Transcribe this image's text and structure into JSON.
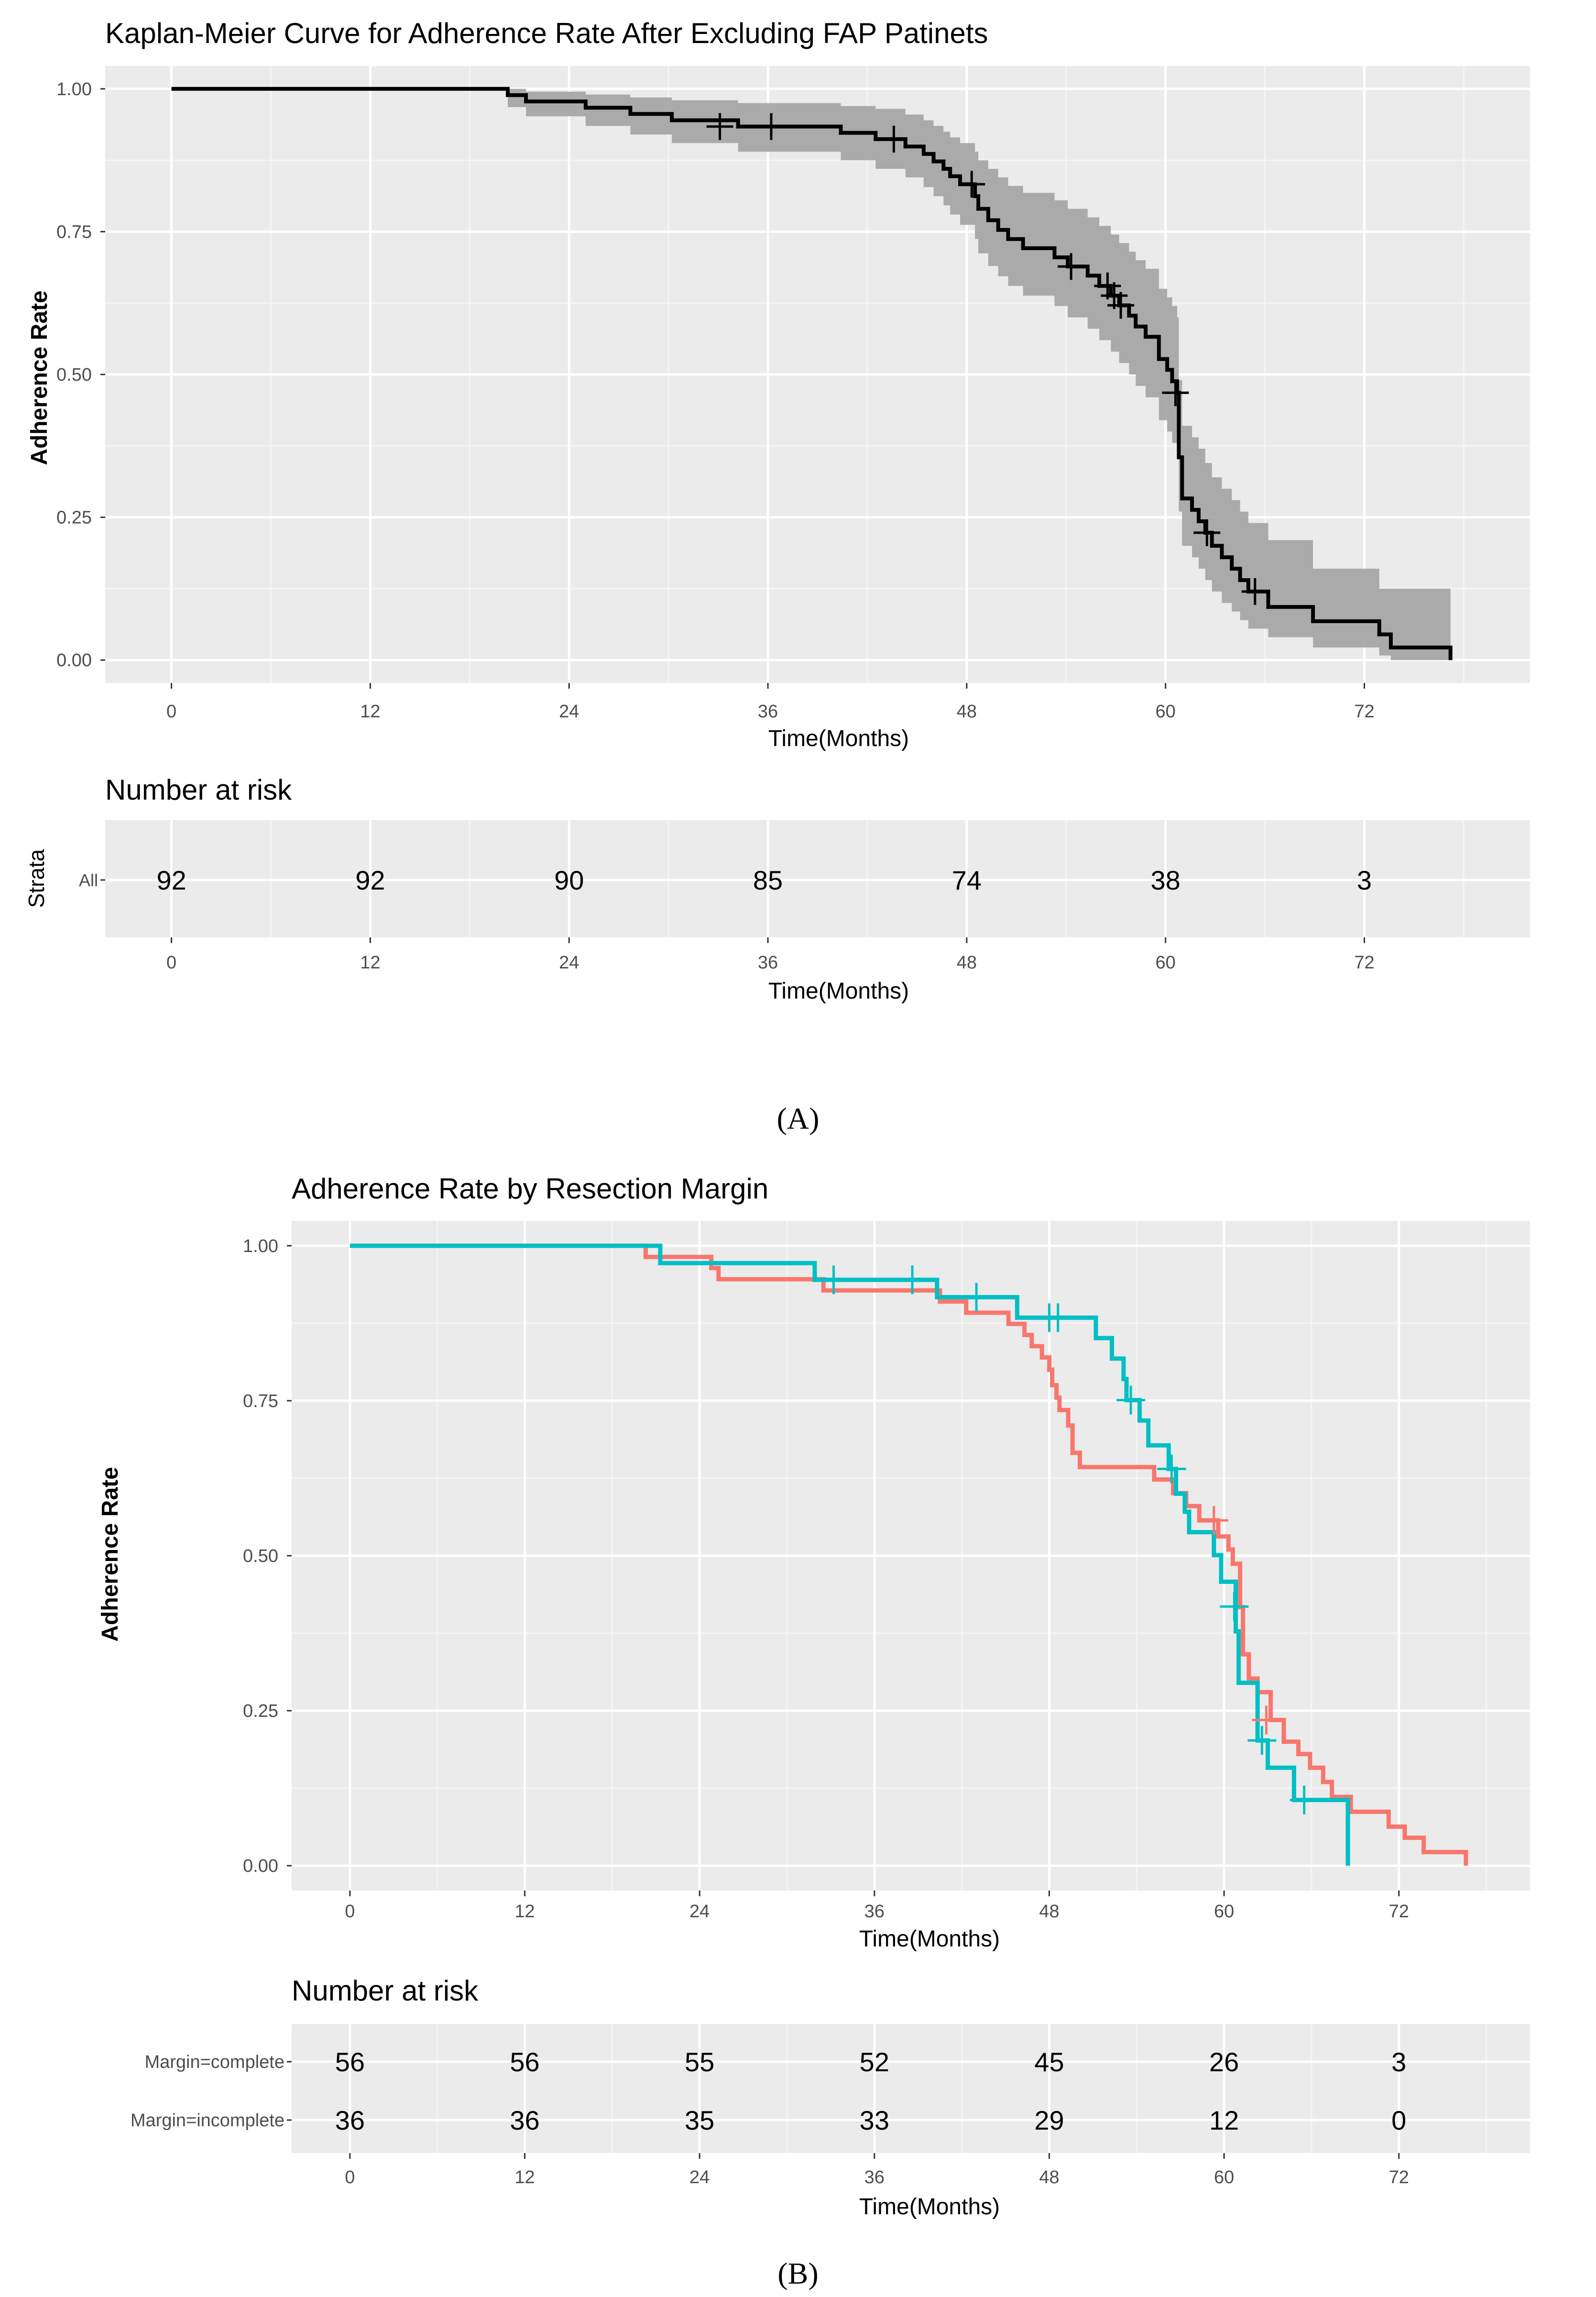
{
  "panel_labels": {
    "a": "(A)",
    "b": "(B)"
  },
  "risk_table_title": "Number at risk",
  "chart_data": [
    {
      "type": "line",
      "kind": "kaplan-meier",
      "title": "Kaplan-Meier Curve for Adherence Rate After Excluding FAP Patinets",
      "xlabel": "Time(Months)",
      "ylabel": "Adherence Rate",
      "xlim": [
        -4,
        82
      ],
      "ylim": [
        -0.04,
        1.04
      ],
      "xticks": [
        0,
        12,
        24,
        36,
        48,
        60,
        72
      ],
      "xtick_labels": [
        "0",
        "12",
        "24",
        "36",
        "48",
        "60",
        "72"
      ],
      "yticks": [
        0,
        0.25,
        0.5,
        0.75,
        1
      ],
      "ytick_labels": [
        "0.00",
        "0.25",
        "0.50",
        "0.75",
        "1.00"
      ],
      "grid": true,
      "legend": "none",
      "series": [
        {
          "name": "All",
          "color": "#000000",
          "band_color": "#a6a6a6",
          "steps": [
            [
              0,
              1.0
            ],
            [
              20.3,
              0.989
            ],
            [
              21.4,
              0.978
            ],
            [
              25.0,
              0.967
            ],
            [
              27.7,
              0.956
            ],
            [
              30.2,
              0.945
            ],
            [
              34.2,
              0.934
            ],
            [
              40.4,
              0.923
            ],
            [
              42.5,
              0.912
            ],
            [
              44.3,
              0.899
            ],
            [
              45.4,
              0.886
            ],
            [
              46.0,
              0.873
            ],
            [
              46.6,
              0.86
            ],
            [
              47.0,
              0.847
            ],
            [
              47.6,
              0.833
            ],
            [
              48.5,
              0.812
            ],
            [
              48.7,
              0.79
            ],
            [
              49.3,
              0.77
            ],
            [
              49.9,
              0.753
            ],
            [
              50.5,
              0.737
            ],
            [
              51.4,
              0.721
            ],
            [
              53.3,
              0.705
            ],
            [
              54.1,
              0.689
            ],
            [
              55.3,
              0.673
            ],
            [
              56.0,
              0.655
            ],
            [
              56.7,
              0.638
            ],
            [
              57.2,
              0.621
            ],
            [
              57.8,
              0.603
            ],
            [
              58.2,
              0.584
            ],
            [
              58.8,
              0.566
            ],
            [
              59.6,
              0.527
            ],
            [
              60.1,
              0.508
            ],
            [
              60.4,
              0.488
            ],
            [
              60.7,
              0.468
            ],
            [
              60.8,
              0.355
            ],
            [
              61.0,
              0.283
            ],
            [
              61.6,
              0.263
            ],
            [
              62.0,
              0.243
            ],
            [
              62.4,
              0.223
            ],
            [
              62.8,
              0.2
            ],
            [
              63.4,
              0.18
            ],
            [
              64.0,
              0.16
            ],
            [
              64.5,
              0.14
            ],
            [
              65.0,
              0.12
            ],
            [
              66.2,
              0.093
            ],
            [
              68.9,
              0.068
            ],
            [
              72.9,
              0.045
            ],
            [
              73.6,
              0.022
            ],
            [
              77.2,
              0.0
            ]
          ],
          "band_upper": [
            [
              0,
              1.0
            ],
            [
              20.3,
              1.0
            ],
            [
              21.4,
              0.995
            ],
            [
              25.0,
              0.99
            ],
            [
              27.7,
              0.985
            ],
            [
              30.2,
              0.98
            ],
            [
              34.2,
              0.975
            ],
            [
              40.4,
              0.97
            ],
            [
              42.5,
              0.965
            ],
            [
              44.3,
              0.955
            ],
            [
              45.4,
              0.945
            ],
            [
              46.0,
              0.935
            ],
            [
              46.6,
              0.925
            ],
            [
              47.0,
              0.915
            ],
            [
              47.6,
              0.905
            ],
            [
              48.5,
              0.89
            ],
            [
              48.7,
              0.875
            ],
            [
              49.3,
              0.86
            ],
            [
              49.9,
              0.845
            ],
            [
              50.5,
              0.83
            ],
            [
              51.4,
              0.818
            ],
            [
              53.3,
              0.805
            ],
            [
              54.1,
              0.79
            ],
            [
              55.3,
              0.775
            ],
            [
              56.0,
              0.76
            ],
            [
              56.7,
              0.745
            ],
            [
              57.2,
              0.73
            ],
            [
              57.8,
              0.715
            ],
            [
              58.2,
              0.7
            ],
            [
              58.8,
              0.685
            ],
            [
              59.6,
              0.65
            ],
            [
              60.1,
              0.635
            ],
            [
              60.4,
              0.62
            ],
            [
              60.7,
              0.6
            ],
            [
              60.8,
              0.49
            ],
            [
              61.0,
              0.41
            ],
            [
              61.6,
              0.39
            ],
            [
              62.0,
              0.37
            ],
            [
              62.4,
              0.345
            ],
            [
              62.8,
              0.32
            ],
            [
              63.4,
              0.3
            ],
            [
              64.0,
              0.28
            ],
            [
              64.5,
              0.26
            ],
            [
              65.0,
              0.24
            ],
            [
              66.2,
              0.21
            ],
            [
              68.9,
              0.16
            ],
            [
              72.9,
              0.125
            ],
            [
              77.2,
              0.125
            ]
          ],
          "band_lower": [
            [
              0,
              1.0
            ],
            [
              20.3,
              0.968
            ],
            [
              21.4,
              0.952
            ],
            [
              25.0,
              0.935
            ],
            [
              27.7,
              0.92
            ],
            [
              30.2,
              0.905
            ],
            [
              34.2,
              0.89
            ],
            [
              40.4,
              0.875
            ],
            [
              42.5,
              0.86
            ],
            [
              44.3,
              0.845
            ],
            [
              45.4,
              0.828
            ],
            [
              46.0,
              0.812
            ],
            [
              46.6,
              0.796
            ],
            [
              47.0,
              0.78
            ],
            [
              47.6,
              0.762
            ],
            [
              48.5,
              0.737
            ],
            [
              48.7,
              0.712
            ],
            [
              49.3,
              0.69
            ],
            [
              49.9,
              0.672
            ],
            [
              50.5,
              0.655
            ],
            [
              51.4,
              0.638
            ],
            [
              53.3,
              0.62
            ],
            [
              54.1,
              0.6
            ],
            [
              55.3,
              0.58
            ],
            [
              56.0,
              0.56
            ],
            [
              56.7,
              0.54
            ],
            [
              57.2,
              0.52
            ],
            [
              57.8,
              0.5
            ],
            [
              58.2,
              0.48
            ],
            [
              58.8,
              0.46
            ],
            [
              59.6,
              0.42
            ],
            [
              60.1,
              0.4
            ],
            [
              60.4,
              0.38
            ],
            [
              60.7,
              0.36
            ],
            [
              60.8,
              0.26
            ],
            [
              61.0,
              0.2
            ],
            [
              61.6,
              0.18
            ],
            [
              62.0,
              0.16
            ],
            [
              62.4,
              0.14
            ],
            [
              62.8,
              0.12
            ],
            [
              63.4,
              0.1
            ],
            [
              64.0,
              0.085
            ],
            [
              64.5,
              0.07
            ],
            [
              65.0,
              0.055
            ],
            [
              66.2,
              0.04
            ],
            [
              68.9,
              0.022
            ],
            [
              72.9,
              0.008
            ],
            [
              73.6,
              0.0
            ],
            [
              77.2,
              0.0
            ]
          ],
          "censor": [
            [
              33.1,
              0.934
            ],
            [
              36.2,
              0.934
            ],
            [
              43.6,
              0.912
            ],
            [
              48.3,
              0.833
            ],
            [
              54.3,
              0.689
            ],
            [
              56.5,
              0.655
            ],
            [
              56.9,
              0.638
            ],
            [
              57.3,
              0.621
            ],
            [
              60.6,
              0.468
            ],
            [
              62.5,
              0.223
            ],
            [
              65.4,
              0.12
            ]
          ]
        }
      ],
      "risk_table": {
        "strata_axis_label": "Strata",
        "rows": [
          {
            "label": "All",
            "color": "#000000",
            "values": [
              "92",
              "92",
              "90",
              "85",
              "74",
              "38",
              "3"
            ]
          }
        ]
      }
    },
    {
      "type": "line",
      "kind": "kaplan-meier",
      "title": "Adherence Rate by Resection Margin",
      "xlabel": "Time(Months)",
      "ylabel": "Adherence Rate",
      "xlim": [
        -4,
        81
      ],
      "ylim": [
        -0.04,
        1.04
      ],
      "xticks": [
        0,
        12,
        24,
        36,
        48,
        60,
        72
      ],
      "xtick_labels": [
        "0",
        "12",
        "24",
        "36",
        "48",
        "60",
        "72"
      ],
      "yticks": [
        0,
        0.25,
        0.5,
        0.75,
        1
      ],
      "ytick_labels": [
        "0.00",
        "0.25",
        "0.50",
        "0.75",
        "1.00"
      ],
      "grid": true,
      "legend": "none",
      "series": [
        {
          "name": "Margin=complete",
          "color": "#f8766d",
          "steps": [
            [
              0,
              1.0
            ],
            [
              20.3,
              0.982
            ],
            [
              24.8,
              0.964
            ],
            [
              25.3,
              0.946
            ],
            [
              32.5,
              0.928
            ],
            [
              40.5,
              0.91
            ],
            [
              42.3,
              0.892
            ],
            [
              45.2,
              0.874
            ],
            [
              46.3,
              0.856
            ],
            [
              46.8,
              0.838
            ],
            [
              47.5,
              0.82
            ],
            [
              48.0,
              0.8
            ],
            [
              48.2,
              0.775
            ],
            [
              48.5,
              0.755
            ],
            [
              48.7,
              0.735
            ],
            [
              49.3,
              0.71
            ],
            [
              49.6,
              0.666
            ],
            [
              50.1,
              0.643
            ],
            [
              55.2,
              0.623
            ],
            [
              56.5,
              0.601
            ],
            [
              57.4,
              0.58
            ],
            [
              58.3,
              0.557
            ],
            [
              59.6,
              0.531
            ],
            [
              60.3,
              0.51
            ],
            [
              60.6,
              0.487
            ],
            [
              61.1,
              0.417
            ],
            [
              61.3,
              0.341
            ],
            [
              61.7,
              0.302
            ],
            [
              62.3,
              0.28
            ],
            [
              63.2,
              0.235
            ],
            [
              64.1,
              0.2
            ],
            [
              65.1,
              0.18
            ],
            [
              65.9,
              0.158
            ],
            [
              66.8,
              0.135
            ],
            [
              67.4,
              0.111
            ],
            [
              68.7,
              0.087
            ],
            [
              71.3,
              0.063
            ],
            [
              72.4,
              0.045
            ],
            [
              73.7,
              0.022
            ],
            [
              76.6,
              0.0
            ]
          ],
          "censor": [
            [
              59.3,
              0.557
            ],
            [
              62.9,
              0.235
            ]
          ]
        },
        {
          "name": "Margin=incomplete",
          "color": "#00bfc4",
          "steps": [
            [
              0,
              1.0
            ],
            [
              21.3,
              0.972
            ],
            [
              31.9,
              0.945
            ],
            [
              33.2,
              0.945
            ],
            [
              40.3,
              0.917
            ],
            [
              45.8,
              0.884
            ],
            [
              51.2,
              0.851
            ],
            [
              52.3,
              0.818
            ],
            [
              53.1,
              0.785
            ],
            [
              53.3,
              0.751
            ],
            [
              54.2,
              0.718
            ],
            [
              54.8,
              0.678
            ],
            [
              56.2,
              0.64
            ],
            [
              56.7,
              0.6
            ],
            [
              57.3,
              0.571
            ],
            [
              57.6,
              0.538
            ],
            [
              59.3,
              0.501
            ],
            [
              59.8,
              0.458
            ],
            [
              60.4,
              0.458
            ],
            [
              60.8,
              0.378
            ],
            [
              61.0,
              0.295
            ],
            [
              62.3,
              0.202
            ],
            [
              63.0,
              0.158
            ],
            [
              64.8,
              0.106
            ],
            [
              68.5,
              0.0
            ]
          ],
          "censor": [
            [
              33.2,
              0.945
            ],
            [
              38.6,
              0.945
            ],
            [
              43.0,
              0.917
            ],
            [
              48.0,
              0.884
            ],
            [
              48.6,
              0.884
            ],
            [
              53.6,
              0.751
            ],
            [
              56.4,
              0.64
            ],
            [
              60.7,
              0.418
            ],
            [
              62.6,
              0.202
            ],
            [
              65.5,
              0.106
            ]
          ]
        }
      ],
      "risk_table": {
        "strata_axis_label": "",
        "rows": [
          {
            "label": "Margin=complete",
            "color": "#f8766d",
            "values": [
              "56",
              "56",
              "55",
              "52",
              "45",
              "26",
              "3"
            ]
          },
          {
            "label": "Margin=incomplete",
            "color": "#00bfc4",
            "values": [
              "36",
              "36",
              "35",
              "33",
              "29",
              "12",
              "0"
            ]
          }
        ]
      }
    }
  ]
}
